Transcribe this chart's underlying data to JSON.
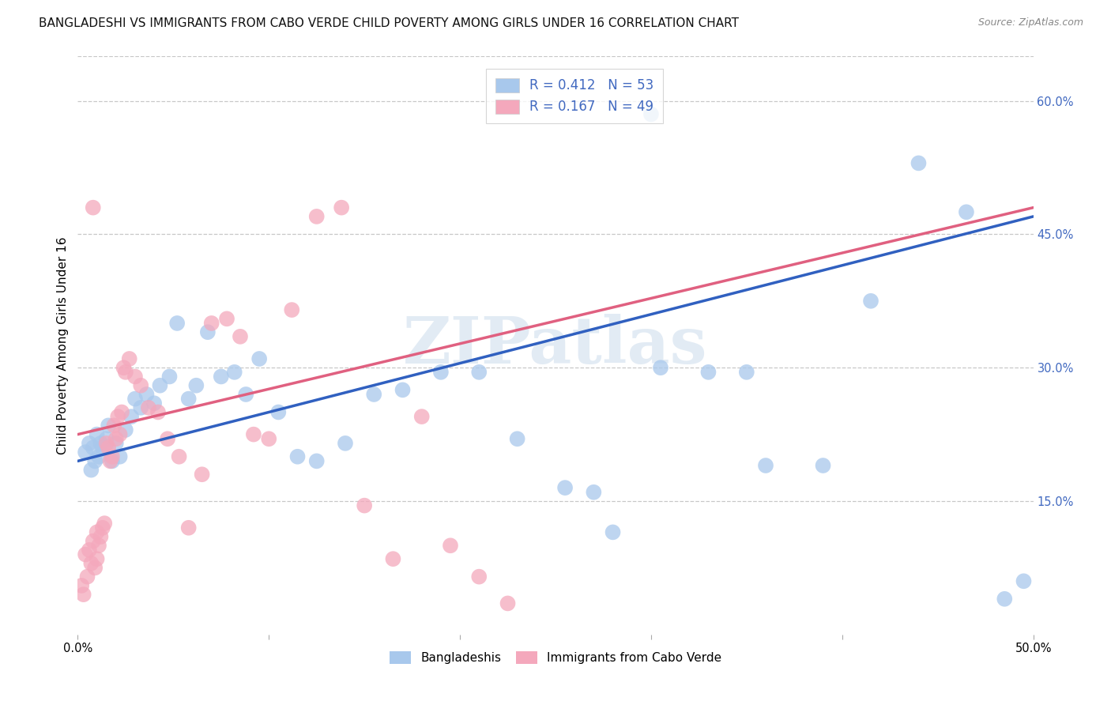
{
  "title": "BANGLADESHI VS IMMIGRANTS FROM CABO VERDE CHILD POVERTY AMONG GIRLS UNDER 16 CORRELATION CHART",
  "source": "Source: ZipAtlas.com",
  "ylabel": "Child Poverty Among Girls Under 16",
  "xlim": [
    0.0,
    0.5
  ],
  "ylim": [
    0.0,
    0.65
  ],
  "watermark": "ZIPatlas",
  "legend_label_color": "#4169c0",
  "bangladeshi_color": "#a8c8ec",
  "caboverde_color": "#f4a8bc",
  "line_blue": "#3060c0",
  "line_pink": "#e06080",
  "background_color": "#ffffff",
  "grid_color": "#c8c8c8",
  "title_fontsize": 11,
  "axis_label_fontsize": 11,
  "tick_fontsize": 10.5,
  "right_tick_color": "#4169c0",
  "blue_line_x0": 0.0,
  "blue_line_y0": 0.195,
  "blue_line_x1": 0.5,
  "blue_line_y1": 0.47,
  "pink_line_x0": 0.0,
  "pink_line_y0": 0.225,
  "pink_line_x1": 0.5,
  "pink_line_y1": 0.48,
  "bangladeshi_x": [
    0.004,
    0.006,
    0.007,
    0.008,
    0.009,
    0.01,
    0.011,
    0.012,
    0.013,
    0.015,
    0.016,
    0.018,
    0.02,
    0.022,
    0.025,
    0.028,
    0.03,
    0.033,
    0.036,
    0.04,
    0.043,
    0.048,
    0.052,
    0.058,
    0.062,
    0.068,
    0.075,
    0.082,
    0.088,
    0.095,
    0.105,
    0.115,
    0.125,
    0.14,
    0.155,
    0.17,
    0.19,
    0.21,
    0.23,
    0.255,
    0.28,
    0.305,
    0.33,
    0.36,
    0.39,
    0.415,
    0.44,
    0.465,
    0.485,
    0.495,
    0.3,
    0.35,
    0.27
  ],
  "bangladeshi_y": [
    0.205,
    0.215,
    0.185,
    0.21,
    0.195,
    0.225,
    0.2,
    0.215,
    0.21,
    0.22,
    0.235,
    0.195,
    0.215,
    0.2,
    0.23,
    0.245,
    0.265,
    0.255,
    0.27,
    0.26,
    0.28,
    0.29,
    0.35,
    0.265,
    0.28,
    0.34,
    0.29,
    0.295,
    0.27,
    0.31,
    0.25,
    0.2,
    0.195,
    0.215,
    0.27,
    0.275,
    0.295,
    0.295,
    0.22,
    0.165,
    0.115,
    0.3,
    0.295,
    0.19,
    0.19,
    0.375,
    0.53,
    0.475,
    0.04,
    0.06,
    0.585,
    0.295,
    0.16
  ],
  "caboverde_x": [
    0.002,
    0.003,
    0.004,
    0.005,
    0.006,
    0.007,
    0.008,
    0.009,
    0.01,
    0.01,
    0.011,
    0.012,
    0.013,
    0.014,
    0.015,
    0.016,
    0.017,
    0.018,
    0.019,
    0.02,
    0.021,
    0.022,
    0.023,
    0.024,
    0.025,
    0.027,
    0.03,
    0.033,
    0.037,
    0.042,
    0.047,
    0.053,
    0.058,
    0.065,
    0.07,
    0.078,
    0.085,
    0.092,
    0.1,
    0.112,
    0.125,
    0.138,
    0.15,
    0.165,
    0.18,
    0.195,
    0.21,
    0.225,
    0.008
  ],
  "caboverde_y": [
    0.055,
    0.045,
    0.09,
    0.065,
    0.095,
    0.08,
    0.105,
    0.075,
    0.115,
    0.085,
    0.1,
    0.11,
    0.12,
    0.125,
    0.215,
    0.21,
    0.195,
    0.2,
    0.235,
    0.22,
    0.245,
    0.225,
    0.25,
    0.3,
    0.295,
    0.31,
    0.29,
    0.28,
    0.255,
    0.25,
    0.22,
    0.2,
    0.12,
    0.18,
    0.35,
    0.355,
    0.335,
    0.225,
    0.22,
    0.365,
    0.47,
    0.48,
    0.145,
    0.085,
    0.245,
    0.1,
    0.065,
    0.035,
    0.48
  ]
}
